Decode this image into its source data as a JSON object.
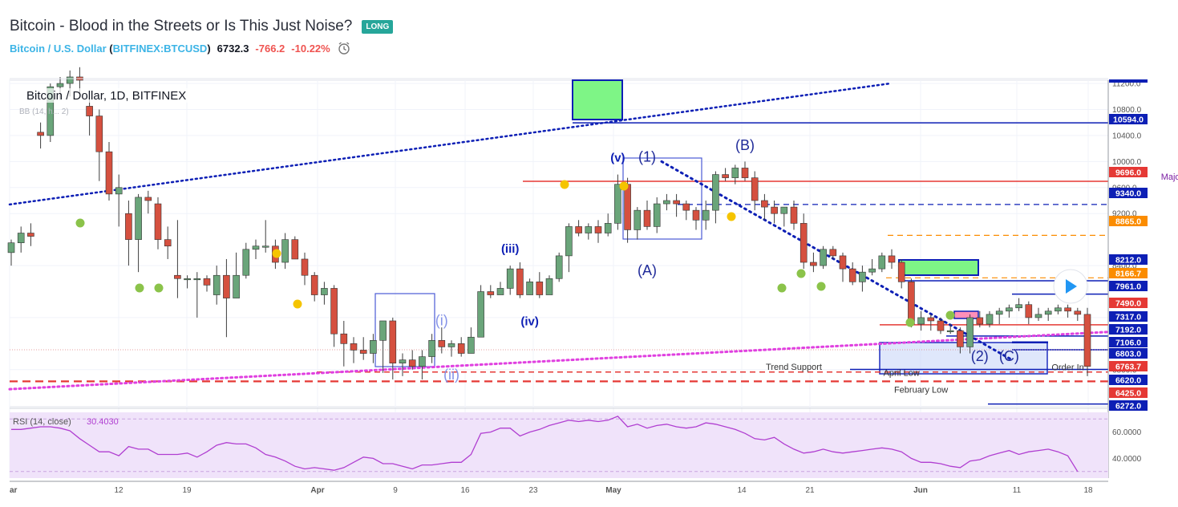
{
  "header": {
    "title": "Bitcoin - Blood in the Streets or Is This Just Noise?",
    "badge": "LONG",
    "symbol": "Bitcoin / U.S. Dollar",
    "exchange_open": "(",
    "exchange": "BITFINEX:BTCUSD",
    "exchange_close": ")",
    "price": "6732.3",
    "change": "-766.2",
    "change_pct": "-10.22%"
  },
  "chart_data": {
    "type": "candlestick",
    "legend": "Bitcoin / Dollar, 1D, BITFINEX",
    "legend_sub": "BB (14, h... 2)",
    "x_ticks": [
      "ar",
      "12",
      "19",
      "Apr",
      "9",
      "16",
      "23",
      "May",
      "14",
      "21",
      "Jun",
      "11",
      "18"
    ],
    "y_ticks": [
      "11200.0",
      "10800.0",
      "10400.0",
      "10000.0",
      "9600.0",
      "9200.0",
      "8400.0",
      "7600.0",
      "6800.0"
    ],
    "ylim": [
      6230,
      11250
    ],
    "price_labels": [
      {
        "value": "10594.0",
        "price": 10594,
        "color": "#0d1fb5"
      },
      {
        "value": "9696.0",
        "price": 9696,
        "color": "#e53935"
      },
      {
        "value": "9340.0",
        "price": 9340,
        "color": "#0d1fb5"
      },
      {
        "value": "8865.0",
        "price": 8865,
        "color": "#fb8c00"
      },
      {
        "value": "8212.0",
        "price": 8212,
        "color": "#0d1fb5"
      },
      {
        "value": "8166.7",
        "price": 8166.7,
        "color": "#fb8c00"
      },
      {
        "value": "7961.0",
        "price": 7961,
        "color": "#0d1fb5"
      },
      {
        "value": "7490.0",
        "price": 7490,
        "color": "#e53935"
      },
      {
        "value": "7317.0",
        "price": 7317,
        "color": "#0d1fb5"
      },
      {
        "value": "7192.0",
        "price": 7192,
        "color": "#0d1fb5"
      },
      {
        "value": "7106.0",
        "price": 7106,
        "color": "#0d1fb5"
      },
      {
        "value": "6803.0",
        "price": 6803,
        "color": "#0d1fb5"
      },
      {
        "value": "6763.7",
        "price": 6763.7,
        "color": "#e53935"
      },
      {
        "value": "6620.0",
        "price": 6620,
        "color": "#0d1fb5"
      },
      {
        "value": "6425.0",
        "price": 6425,
        "color": "#e53935"
      },
      {
        "value": "6272.0",
        "price": 6272,
        "color": "#0d1fb5"
      }
    ],
    "candles": [
      [
        8600,
        8800,
        8400,
        8750
      ],
      [
        8750,
        9000,
        8600,
        8900
      ],
      [
        8900,
        9050,
        8700,
        8850
      ],
      [
        10450,
        10600,
        10200,
        10400
      ],
      [
        10400,
        11200,
        10300,
        11150
      ],
      [
        11150,
        11300,
        10950,
        11200
      ],
      [
        11200,
        11400,
        11000,
        11300
      ],
      [
        11300,
        11450,
        11050,
        11250
      ],
      [
        10850,
        11000,
        10400,
        10700
      ],
      [
        10700,
        10800,
        9700,
        10150
      ],
      [
        10150,
        10300,
        9400,
        9500
      ],
      [
        9500,
        9800,
        9000,
        9600
      ],
      [
        9200,
        9400,
        8400,
        8800
      ],
      [
        8800,
        9500,
        8300,
        9450
      ],
      [
        9450,
        9550,
        9200,
        9400
      ],
      [
        9350,
        9450,
        8650,
        8800
      ],
      [
        8800,
        9000,
        8500,
        8700
      ],
      [
        8250,
        9100,
        7900,
        8200
      ],
      [
        8200,
        8250,
        8050,
        8200
      ],
      [
        8200,
        8300,
        7600,
        8200
      ],
      [
        8200,
        8250,
        8000,
        8100
      ],
      [
        7950,
        8400,
        7800,
        8250
      ],
      [
        8250,
        8500,
        7300,
        7900
      ],
      [
        7900,
        8600,
        7900,
        8250
      ],
      [
        8250,
        8750,
        8200,
        8650
      ],
      [
        8650,
        8800,
        8500,
        8700
      ],
      [
        8700,
        9100,
        8600,
        8700
      ],
      [
        8700,
        8800,
        8350,
        8450
      ],
      [
        8450,
        8900,
        8350,
        8800
      ],
      [
        8800,
        8850,
        8500,
        8500
      ],
      [
        8500,
        8600,
        8100,
        8250
      ],
      [
        8250,
        8300,
        7850,
        7950
      ],
      [
        7950,
        8150,
        7800,
        8050
      ],
      [
        8050,
        8100,
        7150,
        7350
      ],
      [
        7350,
        7550,
        6850,
        7200
      ],
      [
        7200,
        7300,
        6900,
        7100
      ],
      [
        7100,
        7300,
        6950,
        7050
      ],
      [
        7050,
        7350,
        6900,
        7250
      ],
      [
        7250,
        7550,
        6750,
        7550
      ],
      [
        7550,
        7600,
        6650,
        6900
      ],
      [
        6900,
        7050,
        6700,
        6950
      ],
      [
        6950,
        7100,
        6800,
        6850
      ],
      [
        6850,
        7100,
        6650,
        7000
      ],
      [
        7000,
        7350,
        6900,
        7250
      ],
      [
        7250,
        7450,
        7050,
        7150
      ],
      [
        7150,
        7250,
        7000,
        7200
      ],
      [
        7200,
        7300,
        7000,
        7050
      ],
      [
        7050,
        7450,
        7050,
        7300
      ],
      [
        7300,
        8100,
        7300,
        8000
      ],
      [
        8000,
        8100,
        7900,
        7950
      ],
      [
        7950,
        8150,
        7950,
        8050
      ],
      [
        8050,
        8400,
        7950,
        8350
      ],
      [
        8350,
        8450,
        7900,
        7950
      ],
      [
        7950,
        8200,
        7950,
        8150
      ],
      [
        8150,
        8300,
        7900,
        7950
      ],
      [
        7950,
        8250,
        7950,
        8200
      ],
      [
        8200,
        8600,
        8150,
        8550
      ],
      [
        8550,
        9050,
        8300,
        9000
      ],
      [
        9000,
        9100,
        8850,
        8900
      ],
      [
        8900,
        9050,
        8800,
        9000
      ],
      [
        9000,
        9100,
        8750,
        8900
      ],
      [
        8900,
        9200,
        8850,
        9050
      ],
      [
        9050,
        9800,
        8950,
        9650
      ],
      [
        9650,
        9750,
        8750,
        8950
      ],
      [
        8950,
        9300,
        8800,
        9250
      ],
      [
        9250,
        9400,
        8950,
        9000
      ],
      [
        9000,
        9450,
        8900,
        9350
      ],
      [
        9350,
        9500,
        9250,
        9400
      ],
      [
        9400,
        9500,
        9150,
        9350
      ],
      [
        9350,
        9400,
        9100,
        9250
      ],
      [
        9250,
        9300,
        8950,
        9100
      ],
      [
        9100,
        9400,
        8950,
        9250
      ],
      [
        9250,
        9850,
        9050,
        9800
      ],
      [
        9800,
        9900,
        9700,
        9750
      ],
      [
        9750,
        9950,
        9650,
        9900
      ],
      [
        9900,
        10000,
        9700,
        9750
      ],
      [
        9750,
        9850,
        9250,
        9400
      ],
      [
        9400,
        9500,
        9100,
        9300
      ],
      [
        9300,
        9400,
        9050,
        9200
      ],
      [
        9200,
        9300,
        9000,
        9300
      ],
      [
        9300,
        9400,
        8950,
        9050
      ],
      [
        9050,
        9200,
        8350,
        8450
      ],
      [
        8450,
        8600,
        8300,
        8400
      ],
      [
        8400,
        8700,
        8350,
        8650
      ],
      [
        8650,
        8700,
        8500,
        8550
      ],
      [
        8550,
        8600,
        8150,
        8350
      ],
      [
        8350,
        8450,
        8100,
        8150
      ],
      [
        8150,
        8400,
        8000,
        8300
      ],
      [
        8300,
        8500,
        8250,
        8350
      ],
      [
        8350,
        8600,
        8300,
        8550
      ],
      [
        8550,
        8650,
        8350,
        8450
      ],
      [
        8450,
        8500,
        8050,
        8150
      ],
      [
        8150,
        8200,
        7450,
        7500
      ],
      [
        7500,
        7700,
        7400,
        7600
      ],
      [
        7600,
        7650,
        7400,
        7550
      ],
      [
        7550,
        7600,
        7350,
        7400
      ],
      [
        7400,
        7500,
        7350,
        7400
      ],
      [
        7400,
        7450,
        7050,
        7150
      ],
      [
        7150,
        7650,
        7050,
        7600
      ],
      [
        7600,
        7700,
        7450,
        7500
      ],
      [
        7500,
        7700,
        7450,
        7650
      ],
      [
        7650,
        7750,
        7500,
        7700
      ],
      [
        7700,
        7800,
        7600,
        7750
      ],
      [
        7750,
        7900,
        7700,
        7800
      ],
      [
        7800,
        7850,
        7500,
        7600
      ],
      [
        7600,
        7750,
        7550,
        7650
      ],
      [
        7650,
        7750,
        7550,
        7700
      ],
      [
        7700,
        7800,
        7650,
        7750
      ],
      [
        7750,
        7800,
        7600,
        7700
      ],
      [
        7700,
        7750,
        7550,
        7650
      ],
      [
        7650,
        7750,
        6700,
        6850
      ]
    ],
    "rsi": {
      "label": "RSI (14, close)",
      "value": "30.4030",
      "ticks": [
        "60.0000",
        "40.0000"
      ],
      "ylim": [
        25,
        75
      ],
      "values": [
        62,
        62,
        63,
        64,
        64,
        63,
        61,
        55,
        50,
        45,
        45,
        42,
        49,
        47,
        47,
        43,
        43,
        43,
        44,
        41,
        45,
        50,
        52,
        51,
        51,
        48,
        43,
        41,
        38,
        34,
        32,
        33,
        32,
        31,
        33,
        37,
        41,
        40,
        36,
        36,
        34,
        32,
        35,
        35,
        36,
        37,
        37,
        43,
        59,
        60,
        63,
        63,
        57,
        60,
        62,
        65,
        67,
        69,
        68,
        69,
        68,
        69,
        72,
        64,
        66,
        63,
        65,
        66,
        64,
        63,
        64,
        67,
        66,
        64,
        62,
        59,
        55,
        54,
        56,
        51,
        47,
        44,
        45,
        47,
        45,
        44,
        45,
        46,
        47,
        48,
        47,
        45,
        40,
        37,
        37,
        36,
        34,
        33,
        38,
        39,
        42,
        44,
        46,
        43,
        45,
        46,
        47,
        45,
        42,
        30
      ]
    },
    "annotations": [
      {
        "text": "(v)",
        "price": 10000,
        "candle": 62,
        "color": "#0d1fb5",
        "weight": "bold"
      },
      {
        "text": "(1)",
        "price": 10000,
        "candle": 65,
        "color": "#1f2a99"
      },
      {
        "text": "(iii)",
        "price": 8600,
        "candle": 51,
        "color": "#0d1fb5",
        "weight": "bold"
      },
      {
        "text": "(iv)",
        "price": 7480,
        "candle": 53,
        "color": "#0d1fb5",
        "weight": "bold"
      },
      {
        "text": "(A)",
        "price": 8250,
        "candle": 65,
        "color": "#1f2a99"
      },
      {
        "text": "(B)",
        "price": 10180,
        "candle": 75,
        "color": "#1f2a99"
      },
      {
        "text": "(i)",
        "price": 7480,
        "candle": 44,
        "color": "#8593e8"
      },
      {
        "text": "(ii)",
        "price": 6650,
        "candle": 45,
        "color": "#8593e8"
      },
      {
        "text": "(2)",
        "price": 6930,
        "candle": 99,
        "color": "#1f2a99"
      },
      {
        "text": "(C)",
        "price": 6930,
        "candle": 102,
        "color": "#1f2a99"
      },
      {
        "text": "Major Resistance",
        "price": 9720,
        "candle": 121,
        "color": "#7b1fa2"
      },
      {
        "text": "Trend Support",
        "price": 6800,
        "candle": 80,
        "color": "#333"
      },
      {
        "text": "April Low",
        "price": 6705,
        "candle": 91,
        "color": "#333"
      },
      {
        "text": "February Low",
        "price": 6445,
        "candle": 93,
        "color": "#333"
      },
      {
        "text": "Order In",
        "price": 6790,
        "candle": 108,
        "color": "#333"
      }
    ],
    "grid": true,
    "legend_position": "top-left"
  }
}
